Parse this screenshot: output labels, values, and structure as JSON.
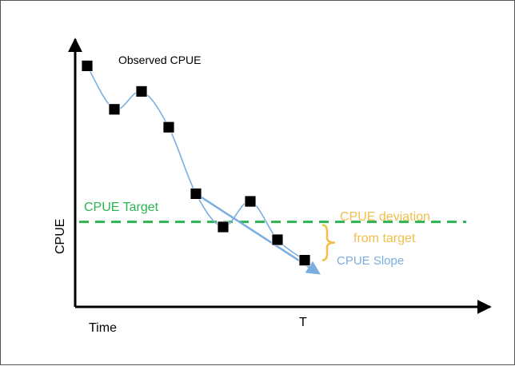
{
  "chart_data": {
    "type": "line",
    "title": "",
    "xlabel": "Time",
    "ylabel": "CPUE",
    "x_marker_label": "T",
    "series": [
      {
        "name": "Observed CPUE",
        "x": [
          1,
          2,
          3,
          4,
          5,
          6,
          7,
          8,
          9
        ],
        "y": [
          9.3,
          7.6,
          8.3,
          6.9,
          4.3,
          3.0,
          4.0,
          2.5,
          1.7
        ]
      }
    ],
    "target": {
      "label": "CPUE Target",
      "value": 3.2
    },
    "slope": {
      "label": "CPUE Slope",
      "from": [
        5,
        4.3
      ],
      "to": [
        9.5,
        1.2
      ]
    },
    "deviation": {
      "label_line1": "CPUE deviation",
      "label_line2": "from target"
    },
    "colors": {
      "observed": "#7aaee0",
      "target": "#2db352",
      "slope": "#7aaee0",
      "deviation": "#f2c04a",
      "axis": "#000000"
    }
  }
}
